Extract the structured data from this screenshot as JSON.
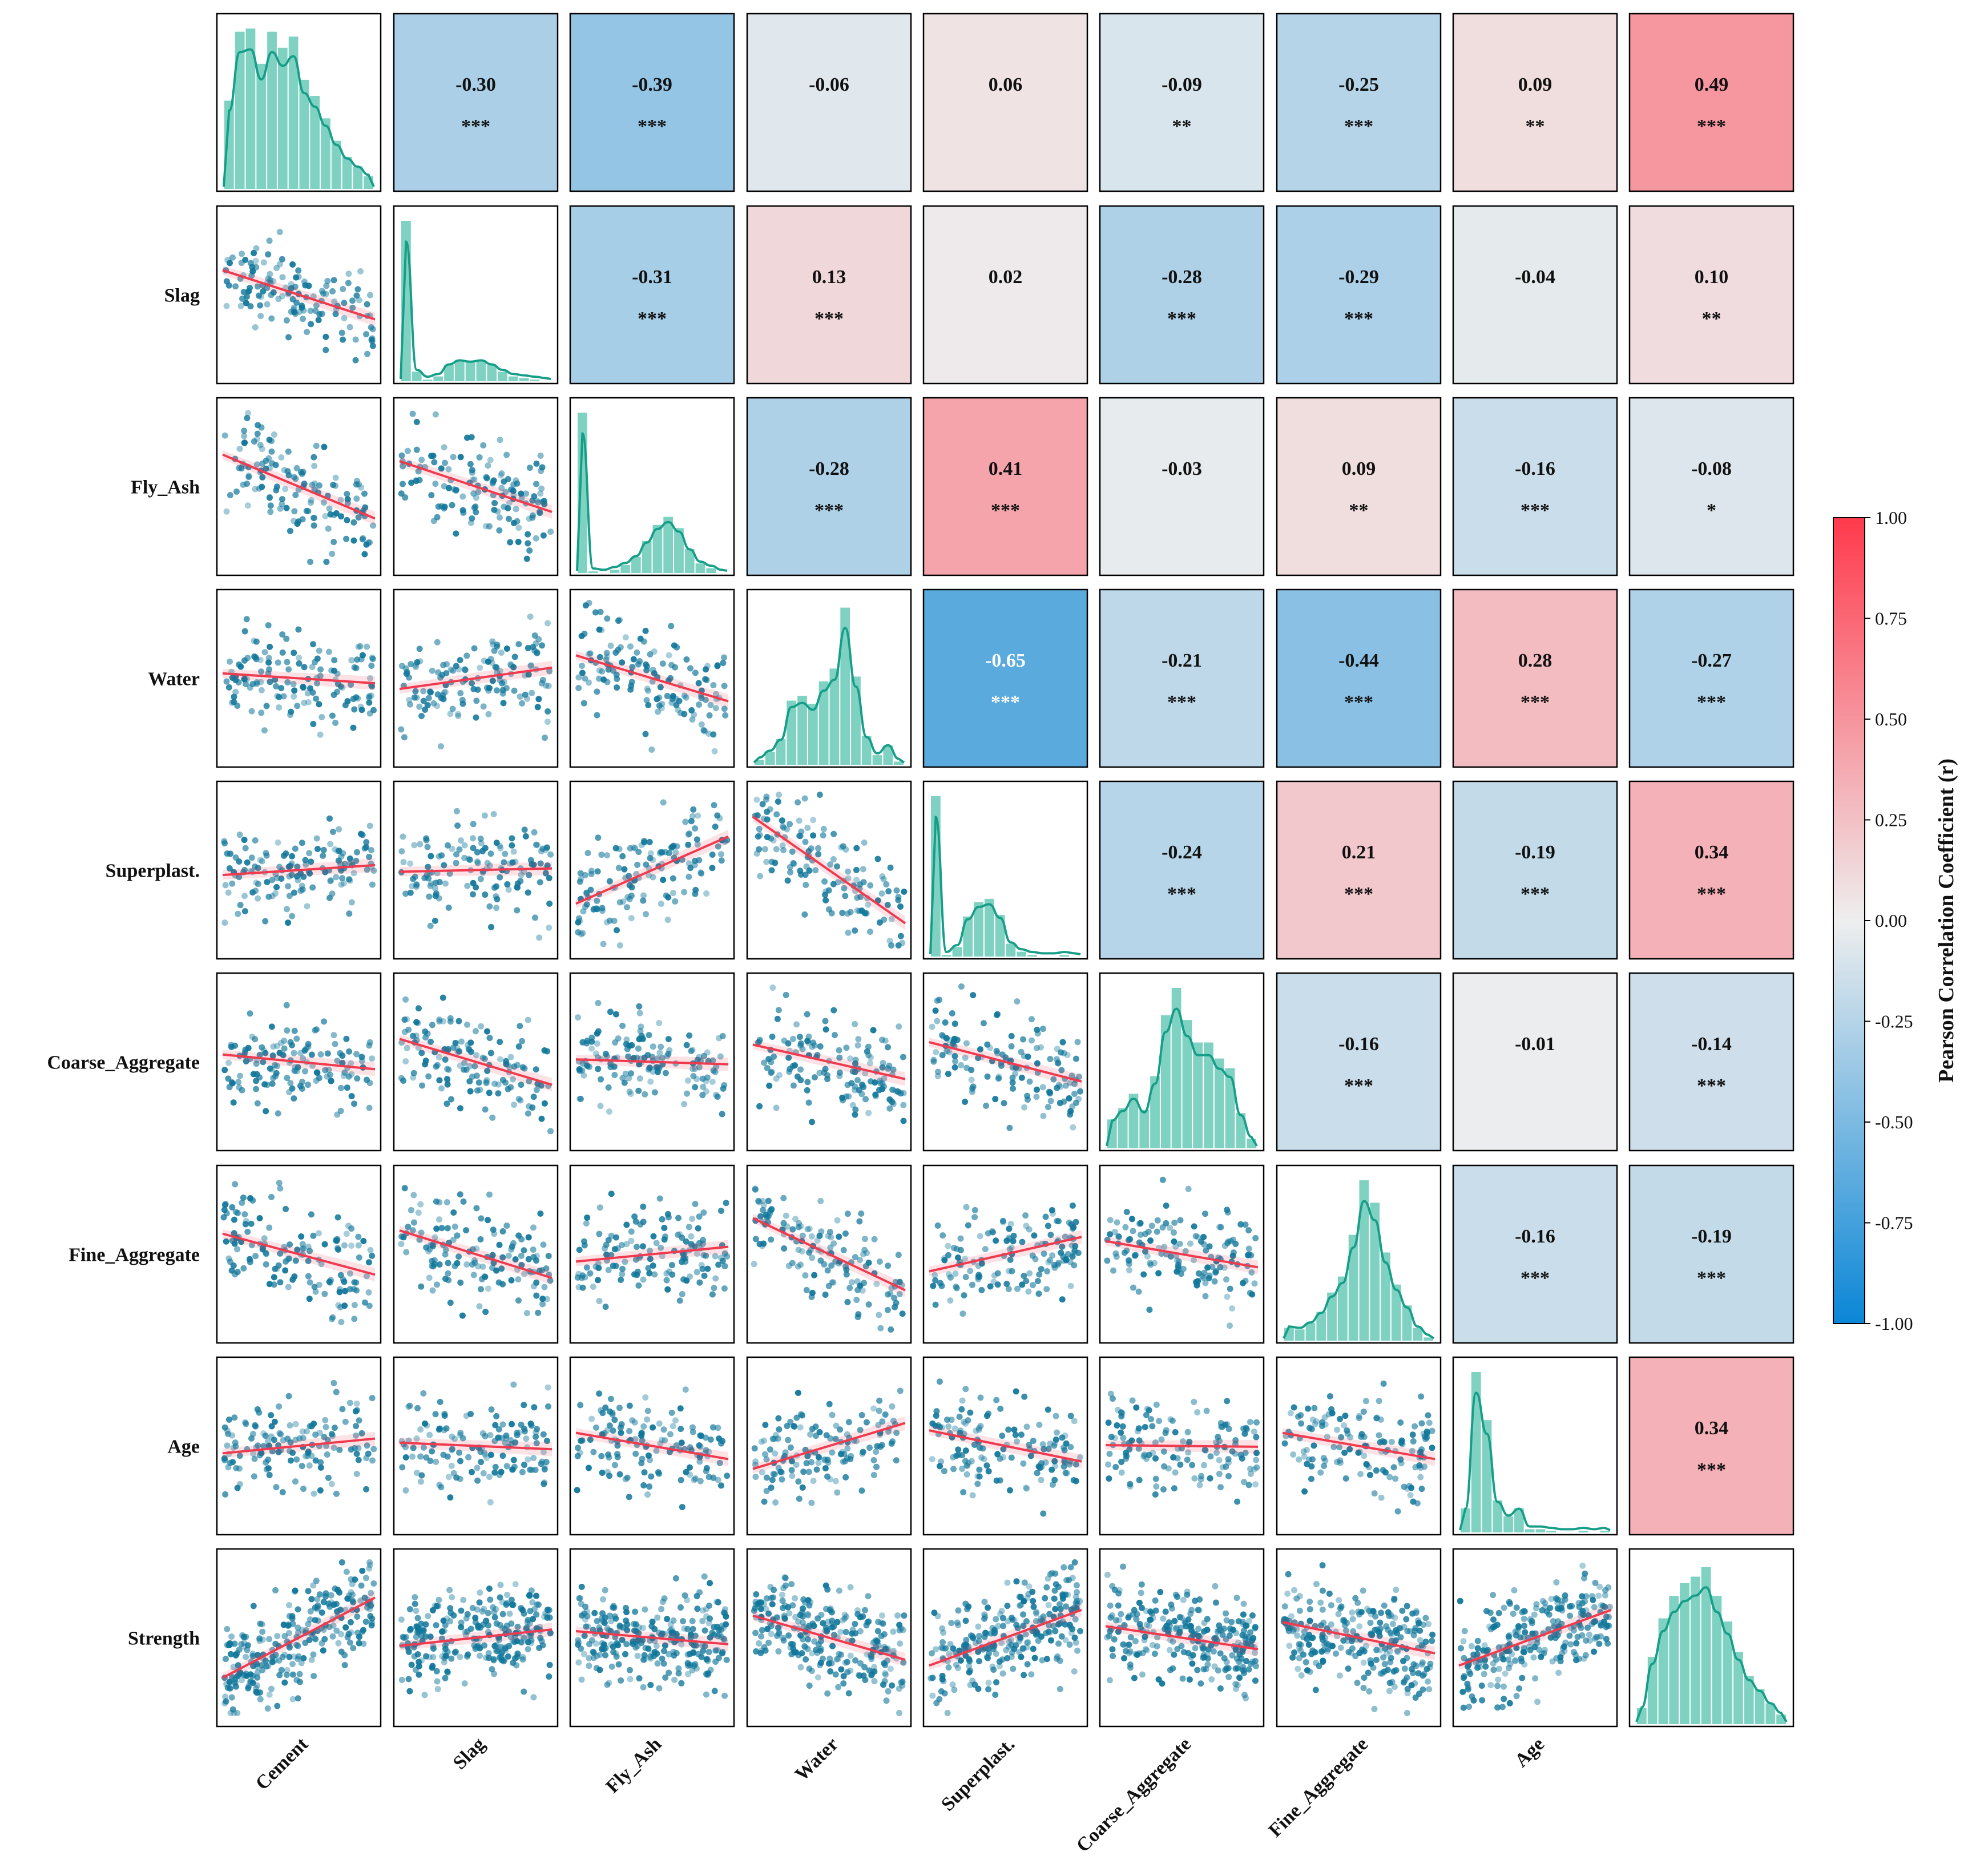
{
  "chart_data": {
    "type": "pairplot-correlation-matrix",
    "variables": [
      "Cement",
      "Slag",
      "Fly_Ash",
      "Water",
      "Superplast.",
      "Coarse_Aggregate",
      "Fine_Aggregate",
      "Age",
      "Strength"
    ],
    "row_labels": [
      "",
      "Slag",
      "Fly_Ash",
      "Water",
      "Superplast.",
      "Coarse_Aggregate",
      "Fine_Aggregate",
      "Age",
      "Strength"
    ],
    "col_labels": [
      "Cement",
      "Slag",
      "Fly_Ash",
      "Water",
      "Superplast.",
      "Coarse_Aggregate",
      "Fine_Aggregate",
      "Age",
      ""
    ],
    "correlations": [
      {
        "row": 0,
        "col": 1,
        "r": -0.3,
        "r_label": "-0.30",
        "sig": "***"
      },
      {
        "row": 0,
        "col": 2,
        "r": -0.39,
        "r_label": "-0.39",
        "sig": "***"
      },
      {
        "row": 0,
        "col": 3,
        "r": -0.06,
        "r_label": "-0.06",
        "sig": ""
      },
      {
        "row": 0,
        "col": 4,
        "r": 0.06,
        "r_label": "0.06",
        "sig": ""
      },
      {
        "row": 0,
        "col": 5,
        "r": -0.09,
        "r_label": "-0.09",
        "sig": "**"
      },
      {
        "row": 0,
        "col": 6,
        "r": -0.25,
        "r_label": "-0.25",
        "sig": "***"
      },
      {
        "row": 0,
        "col": 7,
        "r": 0.09,
        "r_label": "0.09",
        "sig": "**"
      },
      {
        "row": 0,
        "col": 8,
        "r": 0.49,
        "r_label": "0.49",
        "sig": "***"
      },
      {
        "row": 1,
        "col": 2,
        "r": -0.31,
        "r_label": "-0.31",
        "sig": "***"
      },
      {
        "row": 1,
        "col": 3,
        "r": 0.13,
        "r_label": "0.13",
        "sig": "***"
      },
      {
        "row": 1,
        "col": 4,
        "r": 0.02,
        "r_label": "0.02",
        "sig": ""
      },
      {
        "row": 1,
        "col": 5,
        "r": -0.28,
        "r_label": "-0.28",
        "sig": "***"
      },
      {
        "row": 1,
        "col": 6,
        "r": -0.29,
        "r_label": "-0.29",
        "sig": "***"
      },
      {
        "row": 1,
        "col": 7,
        "r": -0.04,
        "r_label": "-0.04",
        "sig": ""
      },
      {
        "row": 1,
        "col": 8,
        "r": 0.1,
        "r_label": "0.10",
        "sig": "**"
      },
      {
        "row": 2,
        "col": 3,
        "r": -0.28,
        "r_label": "-0.28",
        "sig": "***"
      },
      {
        "row": 2,
        "col": 4,
        "r": 0.41,
        "r_label": "0.41",
        "sig": "***"
      },
      {
        "row": 2,
        "col": 5,
        "r": -0.03,
        "r_label": "-0.03",
        "sig": ""
      },
      {
        "row": 2,
        "col": 6,
        "r": 0.09,
        "r_label": "0.09",
        "sig": "**"
      },
      {
        "row": 2,
        "col": 7,
        "r": -0.16,
        "r_label": "-0.16",
        "sig": "***"
      },
      {
        "row": 2,
        "col": 8,
        "r": -0.08,
        "r_label": "-0.08",
        "sig": "*"
      },
      {
        "row": 3,
        "col": 4,
        "r": -0.65,
        "r_label": "-0.65",
        "sig": "***"
      },
      {
        "row": 3,
        "col": 5,
        "r": -0.21,
        "r_label": "-0.21",
        "sig": "***"
      },
      {
        "row": 3,
        "col": 6,
        "r": -0.44,
        "r_label": "-0.44",
        "sig": "***"
      },
      {
        "row": 3,
        "col": 7,
        "r": 0.28,
        "r_label": "0.28",
        "sig": "***"
      },
      {
        "row": 3,
        "col": 8,
        "r": -0.27,
        "r_label": "-0.27",
        "sig": "***"
      },
      {
        "row": 4,
        "col": 5,
        "r": -0.24,
        "r_label": "-0.24",
        "sig": "***"
      },
      {
        "row": 4,
        "col": 6,
        "r": 0.21,
        "r_label": "0.21",
        "sig": "***"
      },
      {
        "row": 4,
        "col": 7,
        "r": -0.19,
        "r_label": "-0.19",
        "sig": "***"
      },
      {
        "row": 4,
        "col": 8,
        "r": 0.34,
        "r_label": "0.34",
        "sig": "***"
      },
      {
        "row": 5,
        "col": 6,
        "r": -0.16,
        "r_label": "-0.16",
        "sig": "***"
      },
      {
        "row": 5,
        "col": 7,
        "r": -0.01,
        "r_label": "-0.01",
        "sig": ""
      },
      {
        "row": 5,
        "col": 8,
        "r": -0.14,
        "r_label": "-0.14",
        "sig": "***"
      },
      {
        "row": 6,
        "col": 7,
        "r": -0.16,
        "r_label": "-0.16",
        "sig": "***"
      },
      {
        "row": 6,
        "col": 8,
        "r": -0.19,
        "r_label": "-0.19",
        "sig": "***"
      },
      {
        "row": 7,
        "col": 8,
        "r": 0.34,
        "r_label": "0.34",
        "sig": "***"
      }
    ],
    "histograms": [
      [
        0.55,
        0.98,
        1.0,
        0.78,
        0.98,
        0.88,
        0.95,
        0.68,
        0.58,
        0.44,
        0.3,
        0.2,
        0.14,
        0.08
      ],
      [
        1.0,
        0.06,
        0.01,
        0.03,
        0.1,
        0.13,
        0.12,
        0.13,
        0.1,
        0.06,
        0.03,
        0.02,
        0.01,
        0.0
      ],
      [
        1.0,
        0.01,
        0.0,
        0.02,
        0.05,
        0.1,
        0.2,
        0.3,
        0.35,
        0.28,
        0.15,
        0.06,
        0.03,
        0.0
      ],
      [
        0.03,
        0.08,
        0.16,
        0.4,
        0.43,
        0.38,
        0.52,
        0.6,
        0.98,
        0.55,
        0.18,
        0.06,
        0.12,
        0.02
      ],
      [
        1.0,
        0.01,
        0.06,
        0.25,
        0.34,
        0.36,
        0.26,
        0.08,
        0.03,
        0.01,
        0.0,
        0.0,
        0.01,
        0.0
      ],
      [
        0.18,
        0.25,
        0.34,
        0.24,
        0.45,
        0.83,
        1.0,
        0.8,
        0.66,
        0.66,
        0.56,
        0.5,
        0.22,
        0.06
      ],
      [
        0.08,
        0.07,
        0.11,
        0.18,
        0.3,
        0.4,
        0.66,
        1.0,
        0.86,
        0.55,
        0.35,
        0.22,
        0.08,
        0.02
      ],
      [
        0.15,
        1.0,
        0.7,
        0.2,
        0.1,
        0.15,
        0.02,
        0.02,
        0.01,
        0.0,
        0.0,
        0.01,
        0.0,
        0.01
      ],
      [
        0.1,
        0.42,
        0.66,
        0.8,
        0.88,
        0.92,
        0.98,
        0.8,
        0.64,
        0.45,
        0.3,
        0.22,
        0.13,
        0.06
      ]
    ],
    "colorbar": {
      "label": "Pearson Correlation Coefficient (r)",
      "range": [
        -1.0,
        1.0
      ],
      "ticks": [
        "1.00",
        "0.75",
        "0.50",
        "0.25",
        "0.00",
        "-0.25",
        "-0.50",
        "-0.75",
        "-1.00"
      ],
      "colors": {
        "negative": "#0a86d6",
        "neutral": "#eeeeee",
        "positive": "#ff3a4c"
      }
    },
    "colors": {
      "scatter": "#10769a",
      "regression": "#f03a4f",
      "histogram": "#7fd2c2",
      "kde": "#169e88",
      "frame": "#000000",
      "text": "#111111"
    }
  }
}
